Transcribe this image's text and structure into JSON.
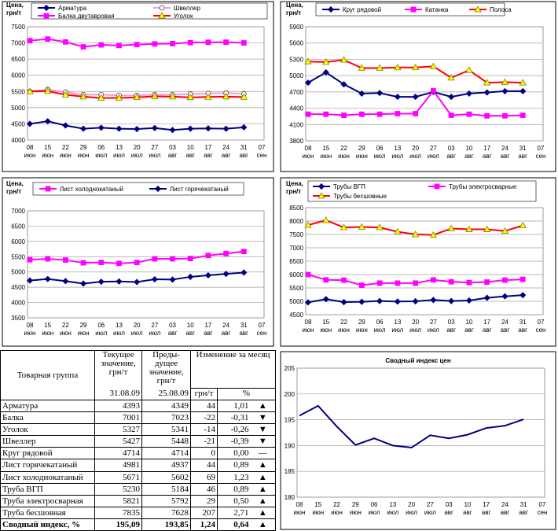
{
  "chart_data": [
    {
      "type": "line",
      "y_label": "Цена, грн/т",
      "categories": [
        "08 июн",
        "15 июн",
        "22 июн",
        "29 июн",
        "06 июл",
        "13 июл",
        "20 июл",
        "27 июл",
        "03 авг",
        "10 авг",
        "17 авг",
        "24 авг",
        "31 авг",
        "07 сен"
      ],
      "series": [
        {
          "name": "Арматура",
          "color": "#000080",
          "marker": "diamond",
          "marker_fill": "#000080",
          "values": [
            4500,
            4580,
            4450,
            4350,
            4380,
            4350,
            4340,
            4370,
            4310,
            4350,
            4360,
            4349,
            4393,
            null
          ]
        },
        {
          "name": "Швеллер",
          "color": "#ff99cc",
          "marker": "circle",
          "marker_fill": "#ffffff",
          "values": [
            5500,
            5560,
            5480,
            5400,
            5400,
            5380,
            5380,
            5400,
            5400,
            5420,
            5440,
            5448,
            5427,
            null
          ]
        },
        {
          "name": "Балка двутавровая",
          "color": "#ff00ff",
          "marker": "square",
          "marker_fill": "#ff00ff",
          "values": [
            7070,
            7120,
            7030,
            6880,
            6940,
            6920,
            6950,
            6970,
            6980,
            7010,
            7020,
            7023,
            7001,
            null
          ]
        },
        {
          "name": "Уголок",
          "color": "#ff0000",
          "marker": "triangle",
          "marker_fill": "#ffff00",
          "values": [
            5500,
            5510,
            5400,
            5340,
            5300,
            5300,
            5320,
            5350,
            5340,
            5320,
            5330,
            5341,
            5327,
            null
          ]
        }
      ],
      "ylim": [
        4000,
        7500
      ],
      "yticks": [
        4000,
        4500,
        5000,
        5500,
        6000,
        6500,
        7000,
        7500
      ],
      "grid": true
    },
    {
      "type": "line",
      "y_label": "Цена, грн/т",
      "categories": [
        "08 июн",
        "15 июн",
        "22 июн",
        "29 июн",
        "06 июл",
        "13 июл",
        "20 июл",
        "27 июл",
        "03 авг",
        "10 авг",
        "17 авг",
        "24 авг",
        "31 авг",
        "07 сен"
      ],
      "series": [
        {
          "name": "Круг рядовой",
          "color": "#000080",
          "marker": "diamond",
          "marker_fill": "#000080",
          "values": [
            4870,
            5060,
            4840,
            4670,
            4680,
            4610,
            4610,
            4700,
            4610,
            4670,
            4690,
            4714,
            4714,
            null
          ]
        },
        {
          "name": "Катанка",
          "color": "#ff00ff",
          "marker": "square",
          "marker_fill": "#ff00ff",
          "values": [
            4290,
            4290,
            4270,
            4290,
            4290,
            4300,
            4300,
            4720,
            4270,
            4290,
            4260,
            4260,
            4270,
            null
          ]
        },
        {
          "name": "Полоса",
          "color": "#ff0000",
          "marker": "triangle",
          "marker_fill": "#ffff00",
          "values": [
            5260,
            5250,
            5290,
            5140,
            5140,
            5150,
            5150,
            5170,
            4960,
            5100,
            4870,
            4880,
            4870,
            null
          ]
        }
      ],
      "ylim": [
        3800,
        5900
      ],
      "yticks": [
        3800,
        4100,
        4400,
        4700,
        5000,
        5300,
        5600,
        5900
      ],
      "grid": true
    },
    {
      "type": "line",
      "y_label": "Цена, грн/т",
      "categories": [
        "08 июн",
        "15 июн",
        "22 июн",
        "29 июн",
        "06 июл",
        "13 июл",
        "20 июл",
        "27 июл",
        "03 авг",
        "10 авг",
        "17 авг",
        "24 авг",
        "31 авг",
        "07 сен"
      ],
      "series": [
        {
          "name": "Лист холоднокатаный",
          "color": "#ff00ff",
          "marker": "square",
          "marker_fill": "#ff00ff",
          "values": [
            5400,
            5430,
            5390,
            5300,
            5310,
            5280,
            5310,
            5430,
            5430,
            5440,
            5540,
            5602,
            5671,
            null
          ]
        },
        {
          "name": "Лист горячекатаный",
          "color": "#000080",
          "marker": "diamond",
          "marker_fill": "#000080",
          "values": [
            4720,
            4770,
            4700,
            4620,
            4680,
            4690,
            4670,
            4760,
            4750,
            4840,
            4890,
            4937,
            4981,
            null
          ]
        }
      ],
      "ylim": [
        3500,
        7000
      ],
      "yticks": [
        3500,
        4000,
        4500,
        5000,
        5500,
        6000,
        6500,
        7000
      ],
      "grid": true
    },
    {
      "type": "line",
      "y_label": "Цена, грн/т",
      "categories": [
        "08 июн",
        "15 июн",
        "22 июн",
        "29 июн",
        "06 июл",
        "13 июл",
        "20 июл",
        "27 июл",
        "03 авг",
        "10 авг",
        "17 авг",
        "24 авг",
        "31 авг",
        "07 сен"
      ],
      "series": [
        {
          "name": "Трубы ВГП",
          "color": "#000080",
          "marker": "diamond",
          "marker_fill": "#000080",
          "values": [
            4960,
            5080,
            4970,
            4980,
            5010,
            4990,
            5000,
            5050,
            5010,
            5030,
            5130,
            5184,
            5230,
            null
          ]
        },
        {
          "name": "Трубы электросварные",
          "color": "#ff00ff",
          "marker": "square",
          "marker_fill": "#ff00ff",
          "values": [
            6000,
            5800,
            5790,
            5600,
            5680,
            5680,
            5680,
            5800,
            5730,
            5700,
            5720,
            5792,
            5821,
            null
          ]
        },
        {
          "name": "Трубы бесшовные",
          "color": "#ff0000",
          "marker": "triangle",
          "marker_fill": "#ffff00",
          "values": [
            7850,
            8030,
            7760,
            7780,
            7760,
            7600,
            7500,
            7480,
            7720,
            7690,
            7690,
            7628,
            7835,
            null
          ]
        }
      ],
      "ylim": [
        4500,
        8500
      ],
      "yticks": [
        4500,
        5000,
        5500,
        6000,
        6500,
        7000,
        7500,
        8000,
        8500
      ],
      "grid": true
    },
    {
      "type": "line",
      "title": "Сводный индекс цен",
      "categories": [
        "08 июн",
        "15 июн",
        "22 июн",
        "29 июн",
        "06 июл",
        "13 июл",
        "20 июл",
        "27 июл",
        "03 авг",
        "10 авг",
        "17 авг",
        "24 авг",
        "31 авг",
        "07 сен"
      ],
      "series": [
        {
          "color": "#000080",
          "values": [
            195.8,
            197.7,
            193.7,
            190.1,
            191.4,
            190.0,
            189.6,
            192.0,
            191.4,
            192.1,
            193.4,
            193.85,
            195.09,
            null
          ]
        }
      ],
      "ylim": [
        180,
        205
      ],
      "yticks": [
        180,
        185,
        190,
        195,
        200,
        205
      ],
      "grid": true
    }
  ],
  "table": {
    "header": {
      "group": "Товарная группа",
      "current": "Текущее значение, грн/т",
      "current_date": "31.08.09",
      "previous": "Преды-дущее значение, грн/т",
      "previous_date": "25.08.09",
      "change": "Изменение за месяц",
      "change_abs": "грн/т",
      "change_pct": "%"
    },
    "rows": [
      [
        "Арматура",
        "4393",
        "4349",
        "44",
        "1,01",
        "▲"
      ],
      [
        "Балка",
        "7001",
        "7023",
        "-22",
        "-0,31",
        "▼"
      ],
      [
        "Уголок",
        "5327",
        "5341",
        "-14",
        "-0,26",
        "▼"
      ],
      [
        "Швеллер",
        "5427",
        "5448",
        "-21",
        "-0,39",
        "▼"
      ],
      [
        "Круг рядовой",
        "4714",
        "4714",
        "0",
        "0,00",
        "—"
      ],
      [
        "Лист горячекатаный",
        "4981",
        "4937",
        "44",
        "0,89",
        "▲"
      ],
      [
        "Лист холоднокатаный",
        "5671",
        "5602",
        "69",
        "1,23",
        "▲"
      ],
      [
        "Труба ВГП",
        "5230",
        "5184",
        "46",
        "0,89",
        "▲"
      ],
      [
        "Труба электросварная",
        "5821",
        "5792",
        "29",
        "0,50",
        "▲"
      ],
      [
        "Труба бесшовная",
        "7835",
        "7628",
        "207",
        "2,71",
        "▲"
      ],
      [
        "Сводный индекс, %",
        "195,09",
        "193,85",
        "1,24",
        "0,64",
        "▲"
      ]
    ]
  }
}
